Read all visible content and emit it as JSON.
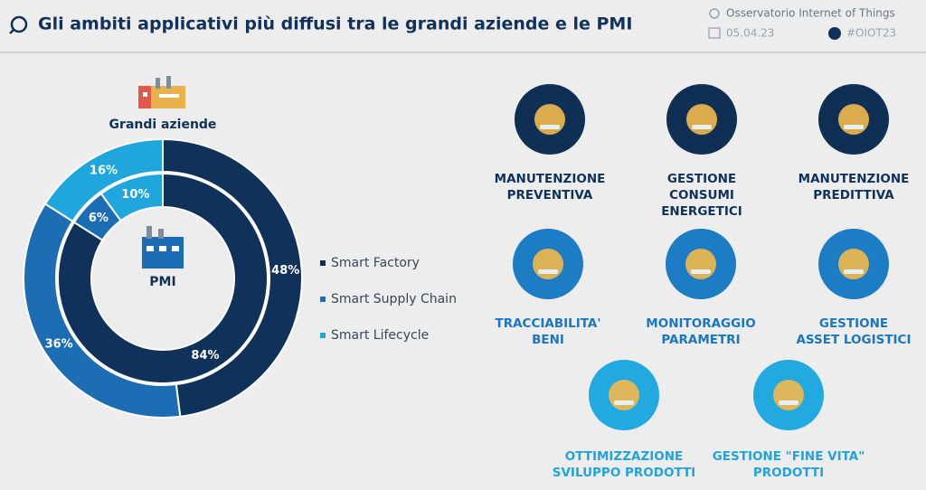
{
  "header": {
    "title": "Gli ambiti applicativi più diffusi tra le grandi aziende e le PMI",
    "source": "Osservatorio Internet of Things",
    "date": "05.04.23",
    "hashtag": "#OIOT23"
  },
  "chart_data": {
    "type": "donut",
    "categories": [
      "Smart Factory",
      "Smart Supply Chain",
      "Smart Lifecycle"
    ],
    "colors": [
      "#10325a",
      "#1c6db3",
      "#1fa6dd"
    ],
    "rings": [
      {
        "name": "Grandi aziende",
        "values": [
          48,
          36,
          16
        ],
        "value_labels": [
          "48%",
          "36%",
          "16%"
        ]
      },
      {
        "name": "PMI",
        "values": [
          84,
          6,
          10
        ],
        "value_labels": [
          "84%",
          "6%",
          "10%"
        ]
      }
    ]
  },
  "applications": [
    {
      "label": [
        "MANUTENZIONE",
        "PREVENTIVA"
      ]
    },
    {
      "label": [
        "GESTIONE",
        "CONSUMI",
        "ENERGETICI"
      ]
    },
    {
      "label": [
        "MANUTENZIONE",
        "PREDITTIVA"
      ]
    },
    {
      "label": [
        "TRACCIABILITA'",
        "BENI"
      ]
    },
    {
      "label": [
        "MONITORAGGIO",
        "PARAMETRI"
      ]
    },
    {
      "label": [
        "GESTIONE",
        "ASSET LOGISTICI"
      ]
    },
    {
      "label": [
        "OTTIMIZZAZIONE",
        "SVILUPPO PRODOTTI"
      ]
    },
    {
      "label": [
        "GESTIONE \"FINE VITA\"",
        "PRODOTTI"
      ]
    }
  ]
}
